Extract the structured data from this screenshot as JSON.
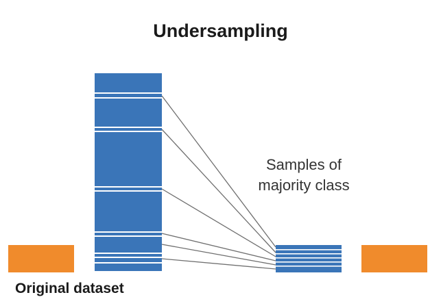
{
  "title": "Undersampling",
  "caption": {
    "line1": "Samples of",
    "line2": "majority class"
  },
  "dataset_label": "Original dataset",
  "colors": {
    "majority": "#3a75b8",
    "minority": "#f08b2c",
    "connector": "#6f6f6f",
    "divider": "#ffffff"
  },
  "majority_class": {
    "original_sample_blocks": 7,
    "undersampled_rows": 6
  },
  "icons": [
    "majority-class-block",
    "minority-class-block",
    "connector-line"
  ]
}
